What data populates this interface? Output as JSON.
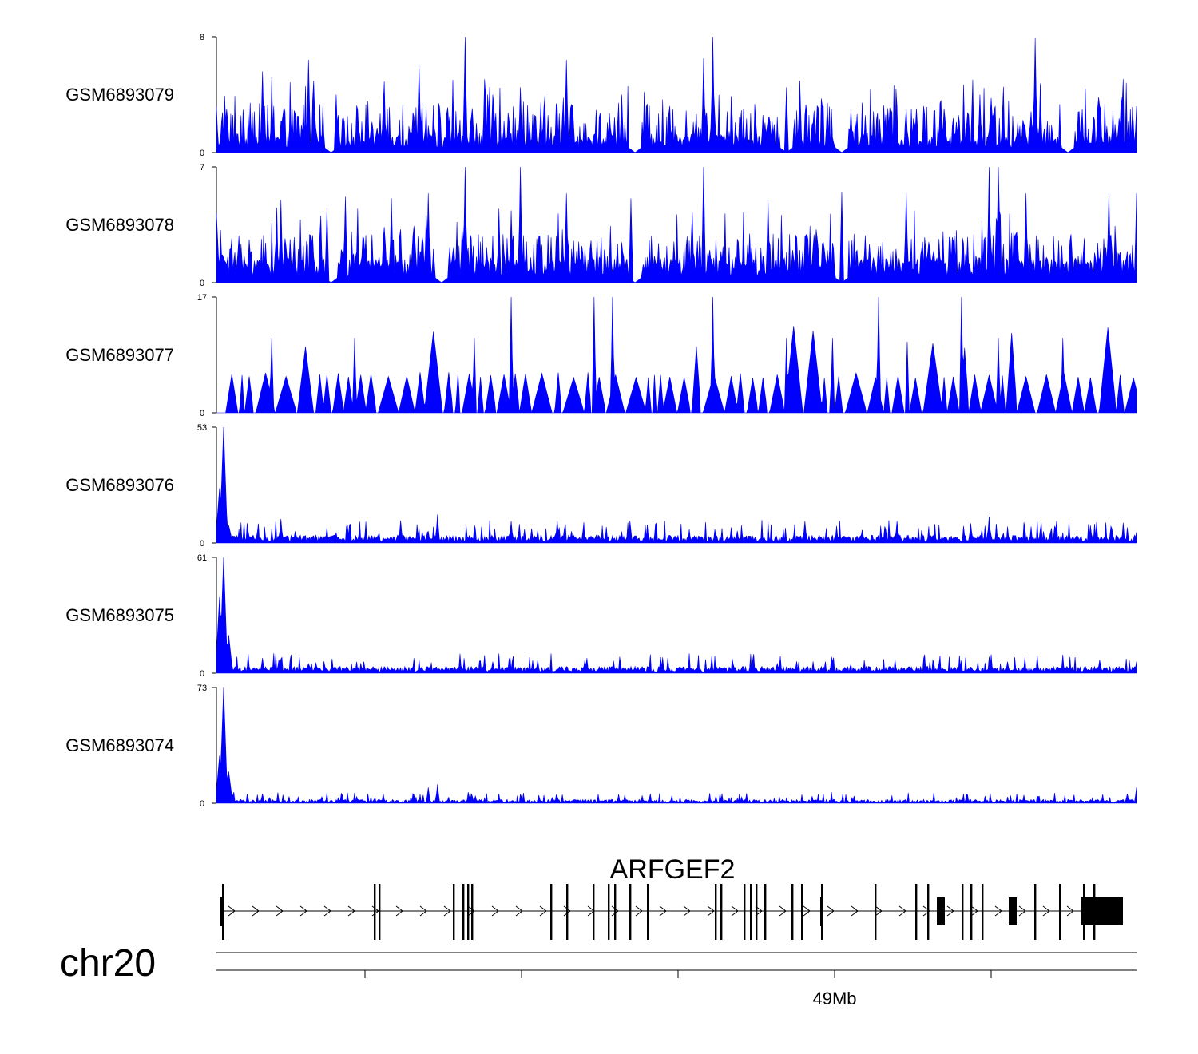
{
  "chart_data": {
    "type": "area",
    "title": "",
    "chromosome": "chr20",
    "fill_color": "#0000ff",
    "series": [
      {
        "name": "GSM6893079",
        "ymax_label": "8",
        "ymin_label": "0",
        "ylim": [
          0,
          8
        ],
        "peaks": [
          [
            0.0,
            3.2
          ],
          [
            0.05,
            5.6
          ],
          [
            0.1,
            6.4
          ],
          [
            0.13,
            4.0
          ],
          [
            0.18,
            1.6
          ],
          [
            0.22,
            6.0
          ],
          [
            0.27,
            8.0
          ],
          [
            0.3,
            4.0
          ],
          [
            0.33,
            4.5
          ],
          [
            0.38,
            6.4
          ],
          [
            0.44,
            4.0
          ],
          [
            0.53,
            6.5
          ],
          [
            0.54,
            8.0
          ],
          [
            0.62,
            4.5
          ],
          [
            0.69,
            3.0
          ],
          [
            0.75,
            3.0
          ],
          [
            0.83,
            4.0
          ],
          [
            0.89,
            7.9
          ],
          [
            0.96,
            3.2
          ],
          [
            1.0,
            3.2
          ]
        ],
        "baseline_level": 1.0,
        "gaps": [
          0.125,
          0.455,
          0.62,
          0.68,
          0.925
        ]
      },
      {
        "name": "GSM6893078",
        "ymax_label": "7",
        "ymin_label": "0",
        "ylim": [
          0,
          7
        ],
        "peaks": [
          [
            0.0,
            4.2
          ],
          [
            0.07,
            5.0
          ],
          [
            0.12,
            4.5
          ],
          [
            0.14,
            5.2
          ],
          [
            0.19,
            5.1
          ],
          [
            0.23,
            5.4
          ],
          [
            0.27,
            7.0
          ],
          [
            0.33,
            7.0
          ],
          [
            0.38,
            5.4
          ],
          [
            0.45,
            5.1
          ],
          [
            0.53,
            7.0
          ],
          [
            0.6,
            5.0
          ],
          [
            0.68,
            5.5
          ],
          [
            0.75,
            5.5
          ],
          [
            0.84,
            5.0
          ],
          [
            0.88,
            5.4
          ],
          [
            0.84,
            7.0
          ],
          [
            0.85,
            7.0
          ],
          [
            0.97,
            5.4
          ],
          [
            1.0,
            5.4
          ]
        ],
        "baseline_level": 1.2,
        "gaps": [
          0.125,
          0.245,
          0.455,
          0.68
        ]
      },
      {
        "name": "GSM6893077",
        "ymax_label": "17",
        "ymin_label": "0",
        "ylim": [
          0,
          17
        ],
        "peaks": [
          [
            0.06,
            11.0
          ],
          [
            0.15,
            11.0
          ],
          [
            0.28,
            11.0
          ],
          [
            0.32,
            17.0
          ],
          [
            0.41,
            17.0
          ],
          [
            0.43,
            17.0
          ],
          [
            0.54,
            17.0
          ],
          [
            0.62,
            11.0
          ],
          [
            0.67,
            11.0
          ],
          [
            0.72,
            17.0
          ],
          [
            0.81,
            17.0
          ],
          [
            0.85,
            11.0
          ],
          [
            0.92,
            11.0
          ]
        ],
        "baseline_level": 0,
        "gaps": []
      },
      {
        "name": "GSM6893076",
        "ymax_label": "53",
        "ymin_label": "0",
        "ylim": [
          0,
          53
        ],
        "peaks": [
          [
            0.003,
            25
          ],
          [
            0.008,
            53
          ],
          [
            0.013,
            8
          ],
          [
            0.07,
            11
          ],
          [
            0.2,
            10
          ],
          [
            0.24,
            13
          ],
          [
            0.32,
            10
          ],
          [
            0.37,
            10
          ],
          [
            0.64,
            10
          ],
          [
            0.74,
            10
          ],
          [
            0.82,
            9
          ],
          [
            0.84,
            12
          ],
          [
            0.95,
            8
          ],
          [
            1.0,
            5
          ]
        ],
        "baseline_level": 3,
        "gaps": []
      },
      {
        "name": "GSM6893075",
        "ymax_label": "61",
        "ymin_label": "0",
        "ylim": [
          0,
          61
        ],
        "peaks": [
          [
            0.003,
            40
          ],
          [
            0.008,
            61
          ],
          [
            0.013,
            20
          ],
          [
            0.05,
            8
          ],
          [
            0.1,
            5
          ],
          [
            0.16,
            6
          ],
          [
            0.3,
            6
          ],
          [
            0.4,
            7
          ],
          [
            0.61,
            5
          ],
          [
            0.67,
            6
          ],
          [
            0.86,
            6
          ],
          [
            0.96,
            7
          ],
          [
            1.0,
            6
          ]
        ],
        "baseline_level": 3,
        "gaps": []
      },
      {
        "name": "GSM6893074",
        "ymax_label": "73",
        "ymin_label": "0",
        "ylim": [
          0,
          73
        ],
        "peaks": [
          [
            0.003,
            30
          ],
          [
            0.008,
            73
          ],
          [
            0.013,
            20
          ],
          [
            0.05,
            6
          ],
          [
            0.23,
            10
          ],
          [
            0.24,
            12
          ],
          [
            0.35,
            5
          ],
          [
            0.47,
            3
          ],
          [
            0.99,
            6
          ],
          [
            1.0,
            10
          ]
        ],
        "baseline_level": 2,
        "gaps": []
      }
    ],
    "gene": {
      "name": "ARFGEF2",
      "strand": "+"
    },
    "genome_axis": {
      "tick_label": "49Mb",
      "tick_count": 5
    }
  }
}
